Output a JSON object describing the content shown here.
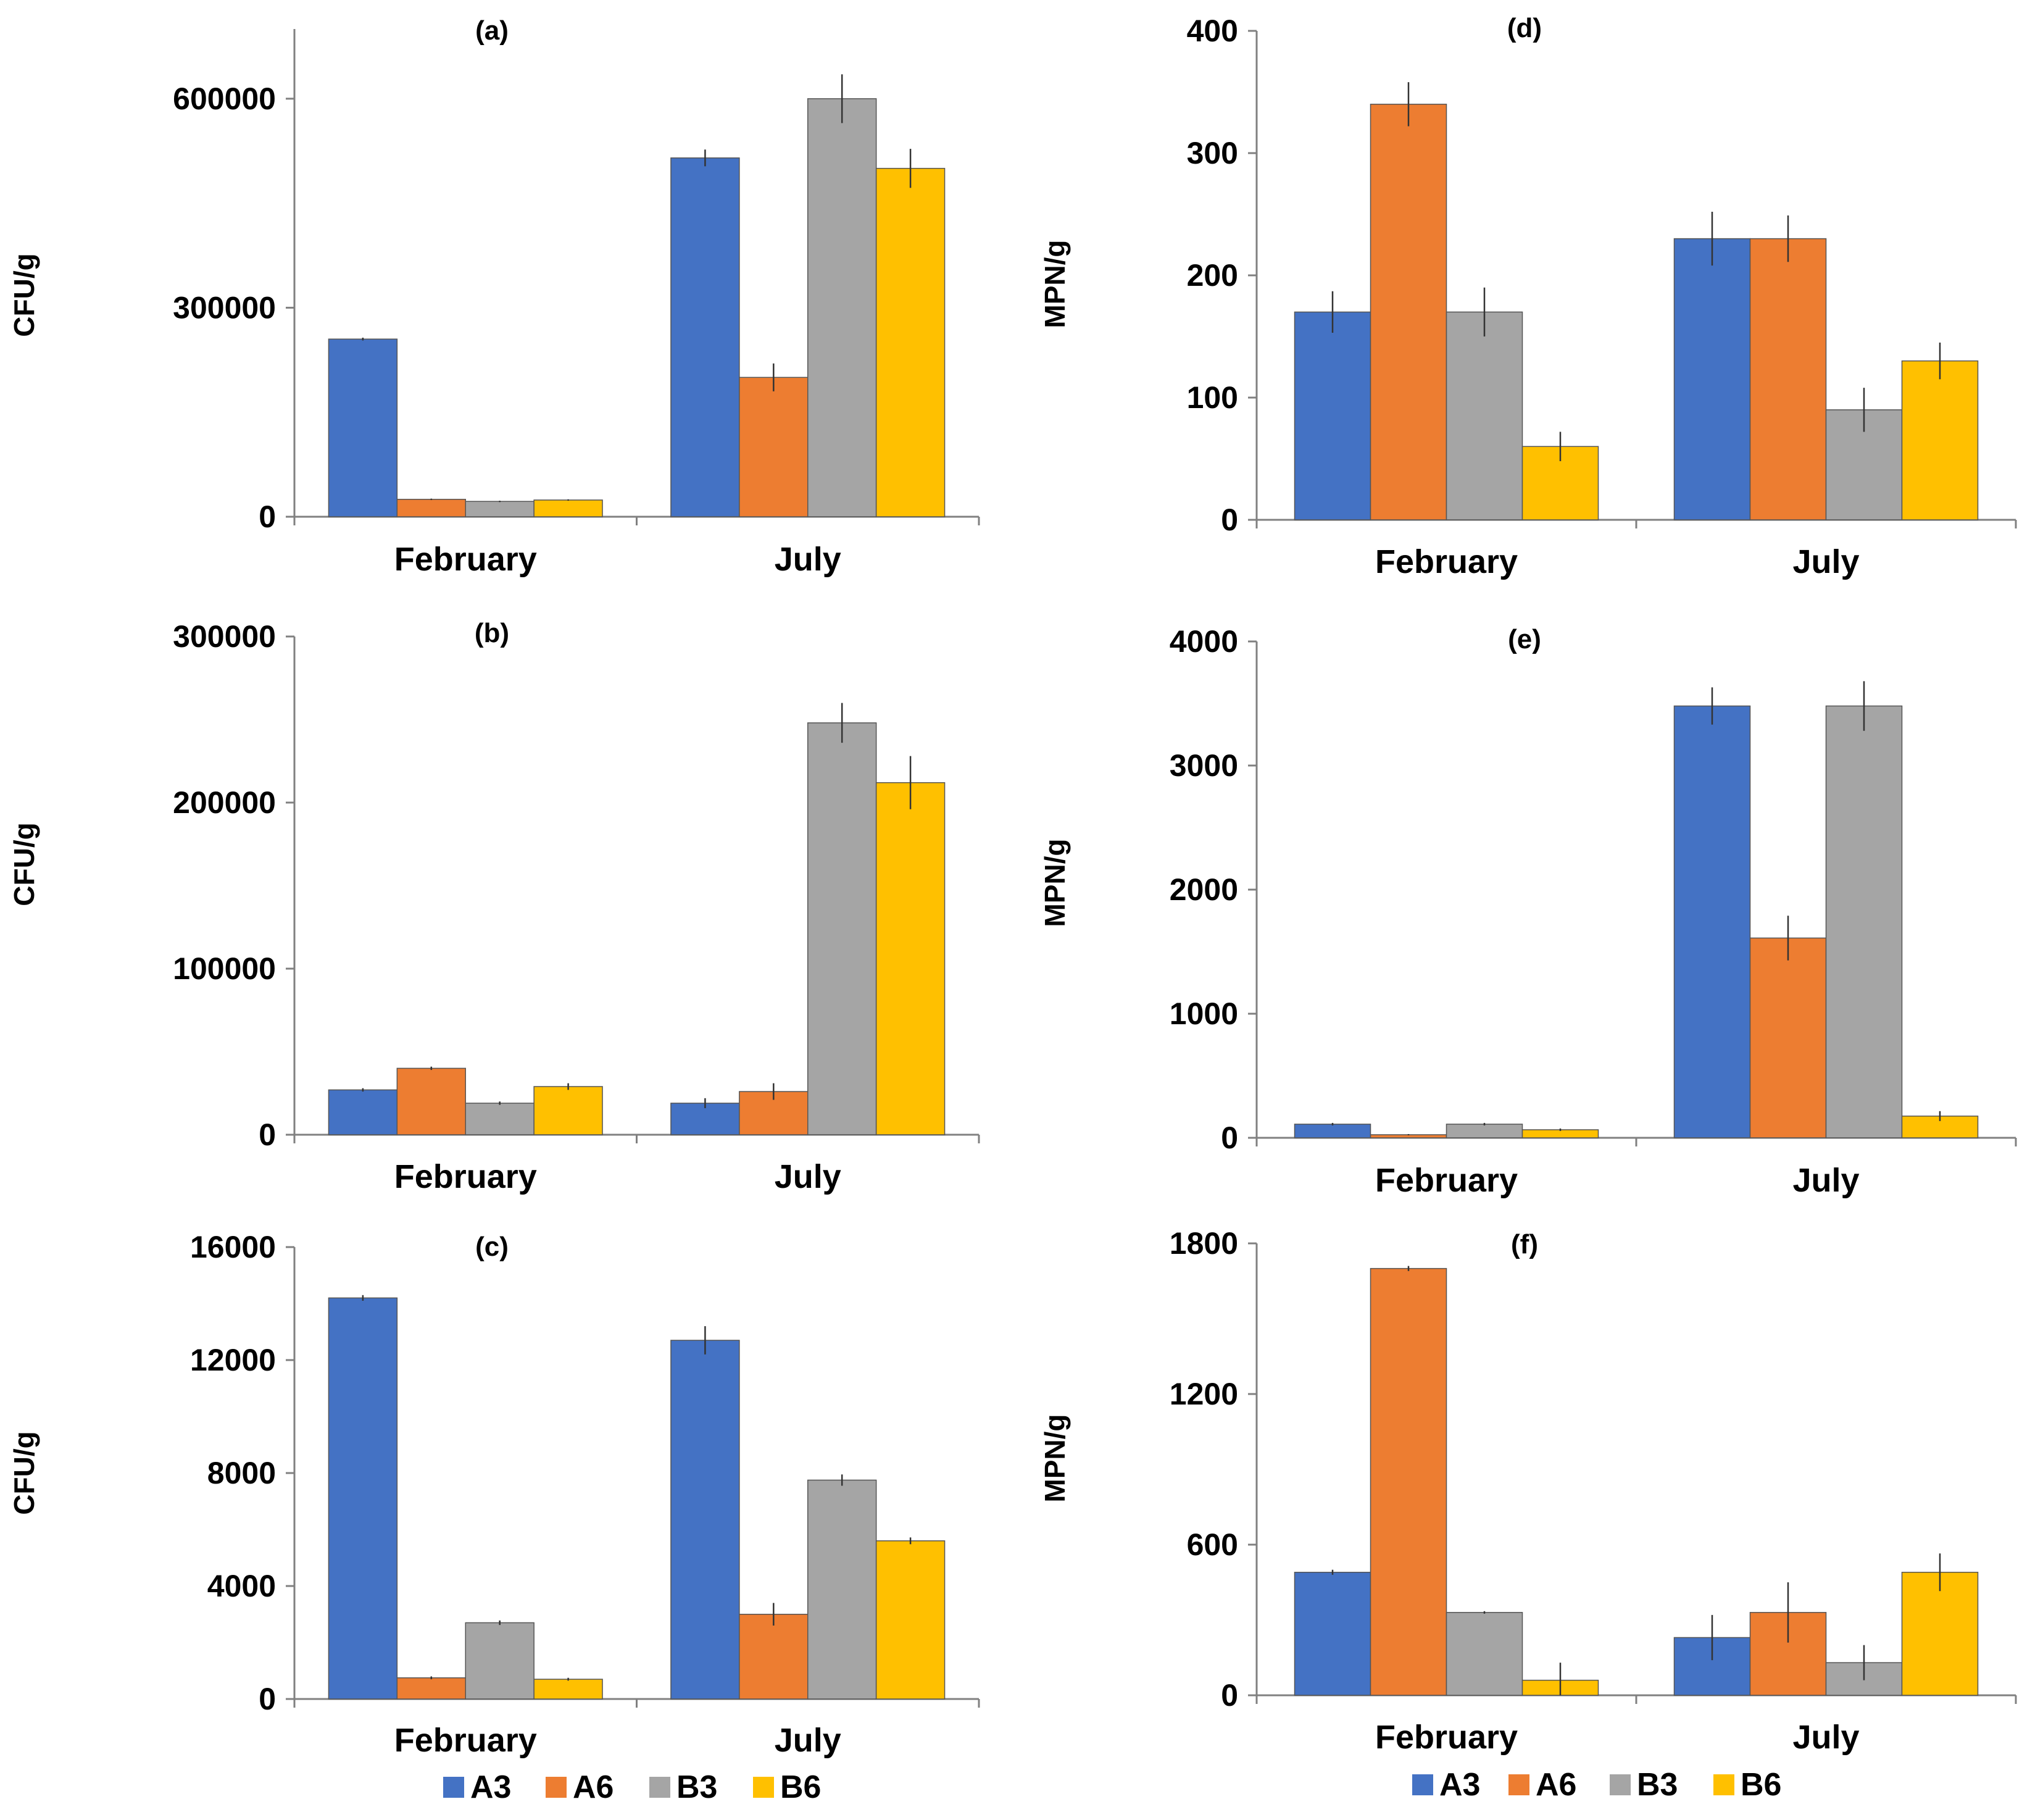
{
  "legend": {
    "left": [
      {
        "label": "A3",
        "color": "#4472C4"
      },
      {
        "label": "A6",
        "color": "#ED7D31"
      },
      {
        "label": "B3",
        "color": "#A5A5A5"
      },
      {
        "label": "B6",
        "color": "#FFC000"
      }
    ],
    "right": [
      {
        "label": "A3",
        "color": "#4472C4"
      },
      {
        "label": "A6",
        "color": "#ED7D31"
      },
      {
        "label": "B3",
        "color": "#A5A5A5"
      },
      {
        "label": "B6",
        "color": "#FFC000"
      }
    ]
  },
  "chart_data": [
    {
      "id": "a",
      "title": "(a)",
      "type": "bar",
      "ylabel": "CFU/g",
      "ylim": [
        0,
        700000
      ],
      "yticks": [
        0,
        300000,
        600000
      ],
      "categories": [
        "February",
        "July"
      ],
      "series": [
        {
          "name": "A3",
          "values": [
            255000,
            515000
          ],
          "errors": [
            2000,
            12000
          ]
        },
        {
          "name": "A6",
          "values": [
            25000,
            200000
          ],
          "errors": [
            1000,
            20000
          ]
        },
        {
          "name": "B3",
          "values": [
            22000,
            600000
          ],
          "errors": [
            1000,
            35000
          ]
        },
        {
          "name": "B6",
          "values": [
            24000,
            500000
          ],
          "errors": [
            1000,
            28000
          ]
        }
      ]
    },
    {
      "id": "b",
      "title": "(b)",
      "type": "bar",
      "ylabel": "CFU/g",
      "ylim": [
        0,
        300000
      ],
      "yticks": [
        0,
        100000,
        200000,
        300000
      ],
      "categories": [
        "February",
        "July"
      ],
      "series": [
        {
          "name": "A3",
          "values": [
            27000,
            19000
          ],
          "errors": [
            1000,
            3000
          ]
        },
        {
          "name": "A6",
          "values": [
            40000,
            26000
          ],
          "errors": [
            1000,
            5000
          ]
        },
        {
          "name": "B3",
          "values": [
            19000,
            248000
          ],
          "errors": [
            1000,
            12000
          ]
        },
        {
          "name": "B6",
          "values": [
            29000,
            212000
          ],
          "errors": [
            2000,
            16000
          ]
        }
      ]
    },
    {
      "id": "c",
      "title": "(c)",
      "type": "bar",
      "ylabel": "CFU/g",
      "ylim": [
        0,
        16000
      ],
      "yticks": [
        0,
        4000,
        8000,
        12000,
        16000
      ],
      "categories": [
        "February",
        "July"
      ],
      "series": [
        {
          "name": "A3",
          "values": [
            14200,
            12700
          ],
          "errors": [
            100,
            500
          ]
        },
        {
          "name": "A6",
          "values": [
            750,
            3000
          ],
          "errors": [
            50,
            400
          ]
        },
        {
          "name": "B3",
          "values": [
            2700,
            7750
          ],
          "errors": [
            80,
            200
          ]
        },
        {
          "name": "B6",
          "values": [
            700,
            5600
          ],
          "errors": [
            50,
            120
          ]
        }
      ]
    },
    {
      "id": "d",
      "title": "(d)",
      "type": "bar",
      "ylabel": "MPN/g",
      "ylim": [
        0,
        400
      ],
      "yticks": [
        0,
        100,
        200,
        300,
        400
      ],
      "categories": [
        "February",
        "July"
      ],
      "series": [
        {
          "name": "A3",
          "values": [
            170,
            230
          ],
          "errors": [
            17,
            22
          ]
        },
        {
          "name": "A6",
          "values": [
            340,
            230
          ],
          "errors": [
            18,
            19
          ]
        },
        {
          "name": "B3",
          "values": [
            170,
            90
          ],
          "errors": [
            20,
            18
          ]
        },
        {
          "name": "B6",
          "values": [
            60,
            130
          ],
          "errors": [
            12,
            15
          ]
        }
      ]
    },
    {
      "id": "e",
      "title": "(e)",
      "type": "bar",
      "ylabel": "MPN/g",
      "ylim": [
        0,
        4000
      ],
      "yticks": [
        0,
        1000,
        2000,
        3000,
        4000
      ],
      "categories": [
        "February",
        "July"
      ],
      "series": [
        {
          "name": "A3",
          "values": [
            110,
            3480
          ],
          "errors": [
            10,
            150
          ]
        },
        {
          "name": "A6",
          "values": [
            25,
            1610
          ],
          "errors": [
            5,
            180
          ]
        },
        {
          "name": "B3",
          "values": [
            110,
            3480
          ],
          "errors": [
            10,
            200
          ]
        },
        {
          "name": "B6",
          "values": [
            65,
            175
          ],
          "errors": [
            10,
            40
          ]
        }
      ]
    },
    {
      "id": "f",
      "title": "(f)",
      "type": "bar",
      "ylabel": "MPN/g",
      "ylim": [
        0,
        1800
      ],
      "yticks": [
        0,
        600,
        1200,
        1800
      ],
      "categories": [
        "February",
        "July"
      ],
      "series": [
        {
          "name": "A3",
          "values": [
            490,
            230
          ],
          "errors": [
            10,
            90
          ]
        },
        {
          "name": "A6",
          "values": [
            1700,
            330
          ],
          "errors": [
            10,
            120
          ]
        },
        {
          "name": "B3",
          "values": [
            330,
            130
          ],
          "errors": [
            5,
            70
          ]
        },
        {
          "name": "B6",
          "values": [
            60,
            490
          ],
          "errors": [
            70,
            75
          ]
        }
      ]
    }
  ]
}
